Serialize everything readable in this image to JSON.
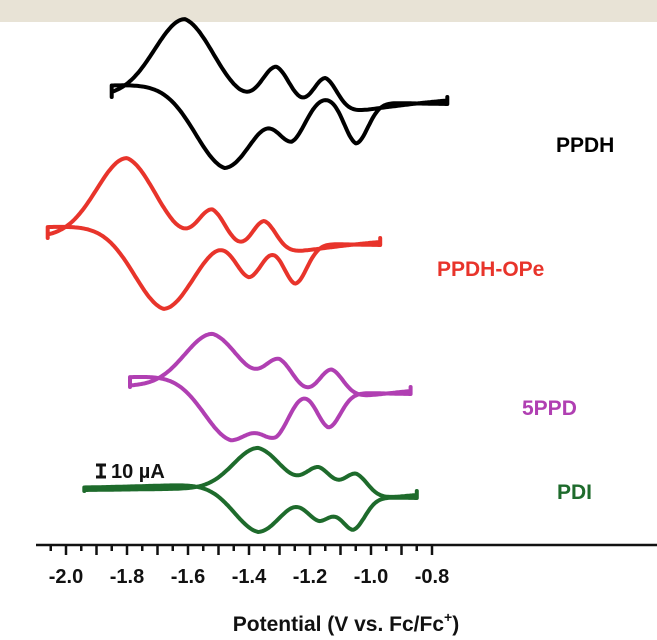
{
  "chart_data": {
    "type": "line",
    "title": "",
    "xlabel": "Potential (V vs. Fc/Fc",
    "xlabel_superscript": "+",
    "xlabel_close": ")",
    "ylabel": "",
    "xlim": [
      -2.06,
      -0.74
    ],
    "x_ticks": [
      "-2.0",
      "-1.8",
      "-1.6",
      "-1.4",
      "-1.2",
      "-1.0",
      "-0.8"
    ],
    "x_tick_values": [
      -2.0,
      -1.8,
      -1.6,
      -1.4,
      -1.2,
      -1.0,
      -0.8
    ],
    "scale_bar": "10 µA",
    "grid": false,
    "series": [
      {
        "name": "PPDH",
        "color": "#000000",
        "x_range": [
          -1.85,
          -0.75
        ],
        "reduction_peaks": [
          -1.48,
          -1.26,
          -1.05
        ],
        "oxidation_peaks": [
          -1.61,
          -1.31,
          -1.15
        ]
      },
      {
        "name": "PPDH-OPe",
        "color": "#e8342b",
        "x_range": [
          -2.06,
          -0.97
        ],
        "reduction_peaks": [
          -1.68,
          -1.4,
          -1.25
        ],
        "oxidation_peaks": [
          -1.8,
          -1.52,
          -1.35
        ]
      },
      {
        "name": "5PPD",
        "color": "#b03fb2",
        "x_range": [
          -1.79,
          -0.87
        ],
        "reduction_peaks": [
          -1.46,
          -1.31,
          -1.14
        ],
        "oxidation_peaks": [
          -1.52,
          -1.3,
          -1.13
        ]
      },
      {
        "name": "PDI",
        "color": "#1e6b2c",
        "x_range": [
          -1.94,
          -0.85
        ],
        "reduction_peaks": [
          -1.37,
          -1.17,
          -1.06
        ],
        "oxidation_peaks": [
          -1.37,
          -1.17,
          -1.05
        ]
      }
    ]
  }
}
